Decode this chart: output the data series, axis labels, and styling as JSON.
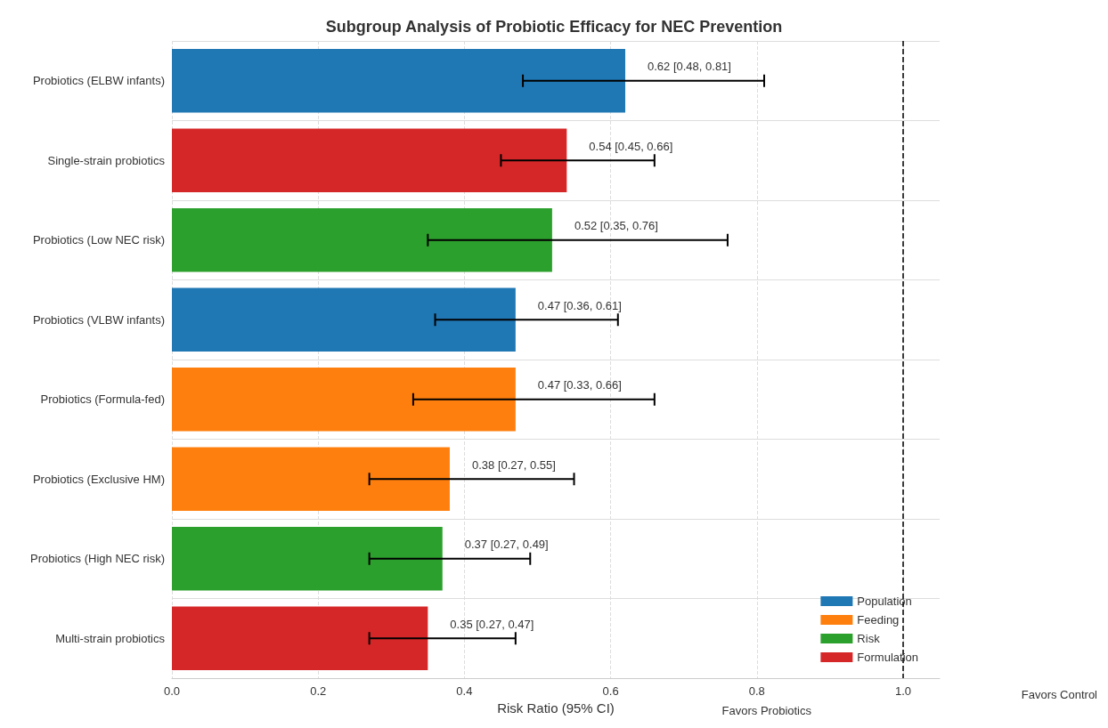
{
  "chart_data": {
    "type": "bar",
    "orientation": "horizontal",
    "title": "Subgroup Analysis of Probiotic Efficacy for NEC Prevention",
    "xlabel": "Risk Ratio (95% CI)",
    "categories": [
      "Probiotics (ELBW infants)",
      "Single-strain probiotics",
      "Probiotics (Low NEC risk)",
      "Probiotics (VLBW infants)",
      "Probiotics (Formula-fed)",
      "Probiotics (Exclusive HM)",
      "Probiotics (High NEC risk)",
      "Multi-strain probiotics"
    ],
    "series": [
      {
        "name": "Population",
        "color": "#1f77b4",
        "values": [
          0.62,
          null,
          null,
          0.47,
          null,
          null,
          null,
          null
        ],
        "errors": [
          [
            0.48,
            0.81
          ],
          null,
          null,
          [
            0.36,
            0.61
          ],
          null,
          null,
          null,
          null
        ],
        "value_labels": [
          "0.62 [0.48, 0.81]",
          null,
          null,
          "0.47 [0.36, 0.61]",
          null,
          null,
          null,
          null
        ]
      },
      {
        "name": "Feeding",
        "color": "#ff7f0e",
        "values": [
          null,
          null,
          null,
          null,
          0.47,
          0.38,
          null,
          null
        ],
        "errors": [
          null,
          null,
          null,
          null,
          [
            0.33,
            0.66
          ],
          [
            0.27,
            0.55
          ],
          null,
          null
        ],
        "value_labels": [
          null,
          null,
          null,
          null,
          "0.47 [0.33, 0.66]",
          "0.38 [0.27, 0.55]",
          null,
          null
        ]
      },
      {
        "name": "Risk",
        "color": "#2ca02c",
        "values": [
          null,
          null,
          0.52,
          null,
          null,
          null,
          0.37,
          null
        ],
        "errors": [
          null,
          null,
          [
            0.35,
            0.76
          ],
          null,
          null,
          null,
          [
            0.27,
            0.49
          ],
          null
        ],
        "value_labels": [
          null,
          null,
          "0.52 [0.35, 0.76]",
          null,
          null,
          null,
          "0.37 [0.27, 0.49]",
          null
        ]
      },
      {
        "name": "Formulation",
        "color": "#d62728",
        "values": [
          null,
          0.54,
          null,
          null,
          null,
          null,
          null,
          0.35
        ],
        "errors": [
          null,
          [
            0.45,
            0.66
          ],
          null,
          null,
          null,
          null,
          null,
          [
            0.27,
            0.47
          ]
        ],
        "value_labels": [
          null,
          "0.54 [0.45, 0.66]",
          null,
          null,
          null,
          null,
          null,
          "0.35 [0.27, 0.47]"
        ]
      }
    ],
    "xlim": [
      0,
      1.05
    ],
    "xticks": [
      {
        "value": 0,
        "label": "0.0"
      },
      0.2,
      0.4,
      0.6,
      0.8,
      {
        "value": 1,
        "label": "1.0"
      }
    ],
    "ref_lines": [
      {
        "axis": "x",
        "value": 1.0,
        "color": "#000000",
        "line_style": "dashed"
      }
    ],
    "annotations": [
      "Favors Probiotics",
      "Favors Control"
    ],
    "grid": true,
    "legend": "bottom right"
  }
}
